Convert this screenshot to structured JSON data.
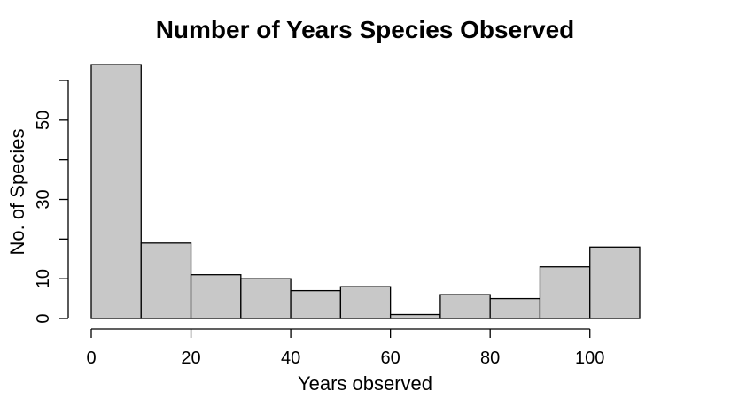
{
  "chart_data": {
    "type": "bar",
    "title": "Number of Years Species Observed",
    "xlabel": "Years observed",
    "ylabel": "No. of Species",
    "bins": [
      {
        "start": 0,
        "end": 10,
        "count": 64
      },
      {
        "start": 10,
        "end": 20,
        "count": 19
      },
      {
        "start": 20,
        "end": 30,
        "count": 11
      },
      {
        "start": 30,
        "end": 40,
        "count": 10
      },
      {
        "start": 40,
        "end": 50,
        "count": 7
      },
      {
        "start": 50,
        "end": 60,
        "count": 8
      },
      {
        "start": 60,
        "end": 70,
        "count": 1
      },
      {
        "start": 70,
        "end": 80,
        "count": 6
      },
      {
        "start": 80,
        "end": 90,
        "count": 5
      },
      {
        "start": 90,
        "end": 100,
        "count": 13
      },
      {
        "start": 100,
        "end": 110,
        "count": 18
      }
    ],
    "x_ticks": [
      0,
      20,
      40,
      60,
      80,
      100
    ],
    "x_tick_labels": [
      "0",
      "20",
      "40",
      "60",
      "80",
      "100"
    ],
    "y_ticks": [
      0,
      10,
      20,
      30,
      40,
      50,
      60
    ],
    "y_tick_labels": [
      "0",
      "10",
      "",
      "30",
      "",
      "50",
      ""
    ],
    "xlim": [
      0,
      110
    ],
    "ylim": [
      0,
      60
    ],
    "grid": false,
    "bar_color": "#c8c8c8",
    "edge_color": "#000000"
  }
}
